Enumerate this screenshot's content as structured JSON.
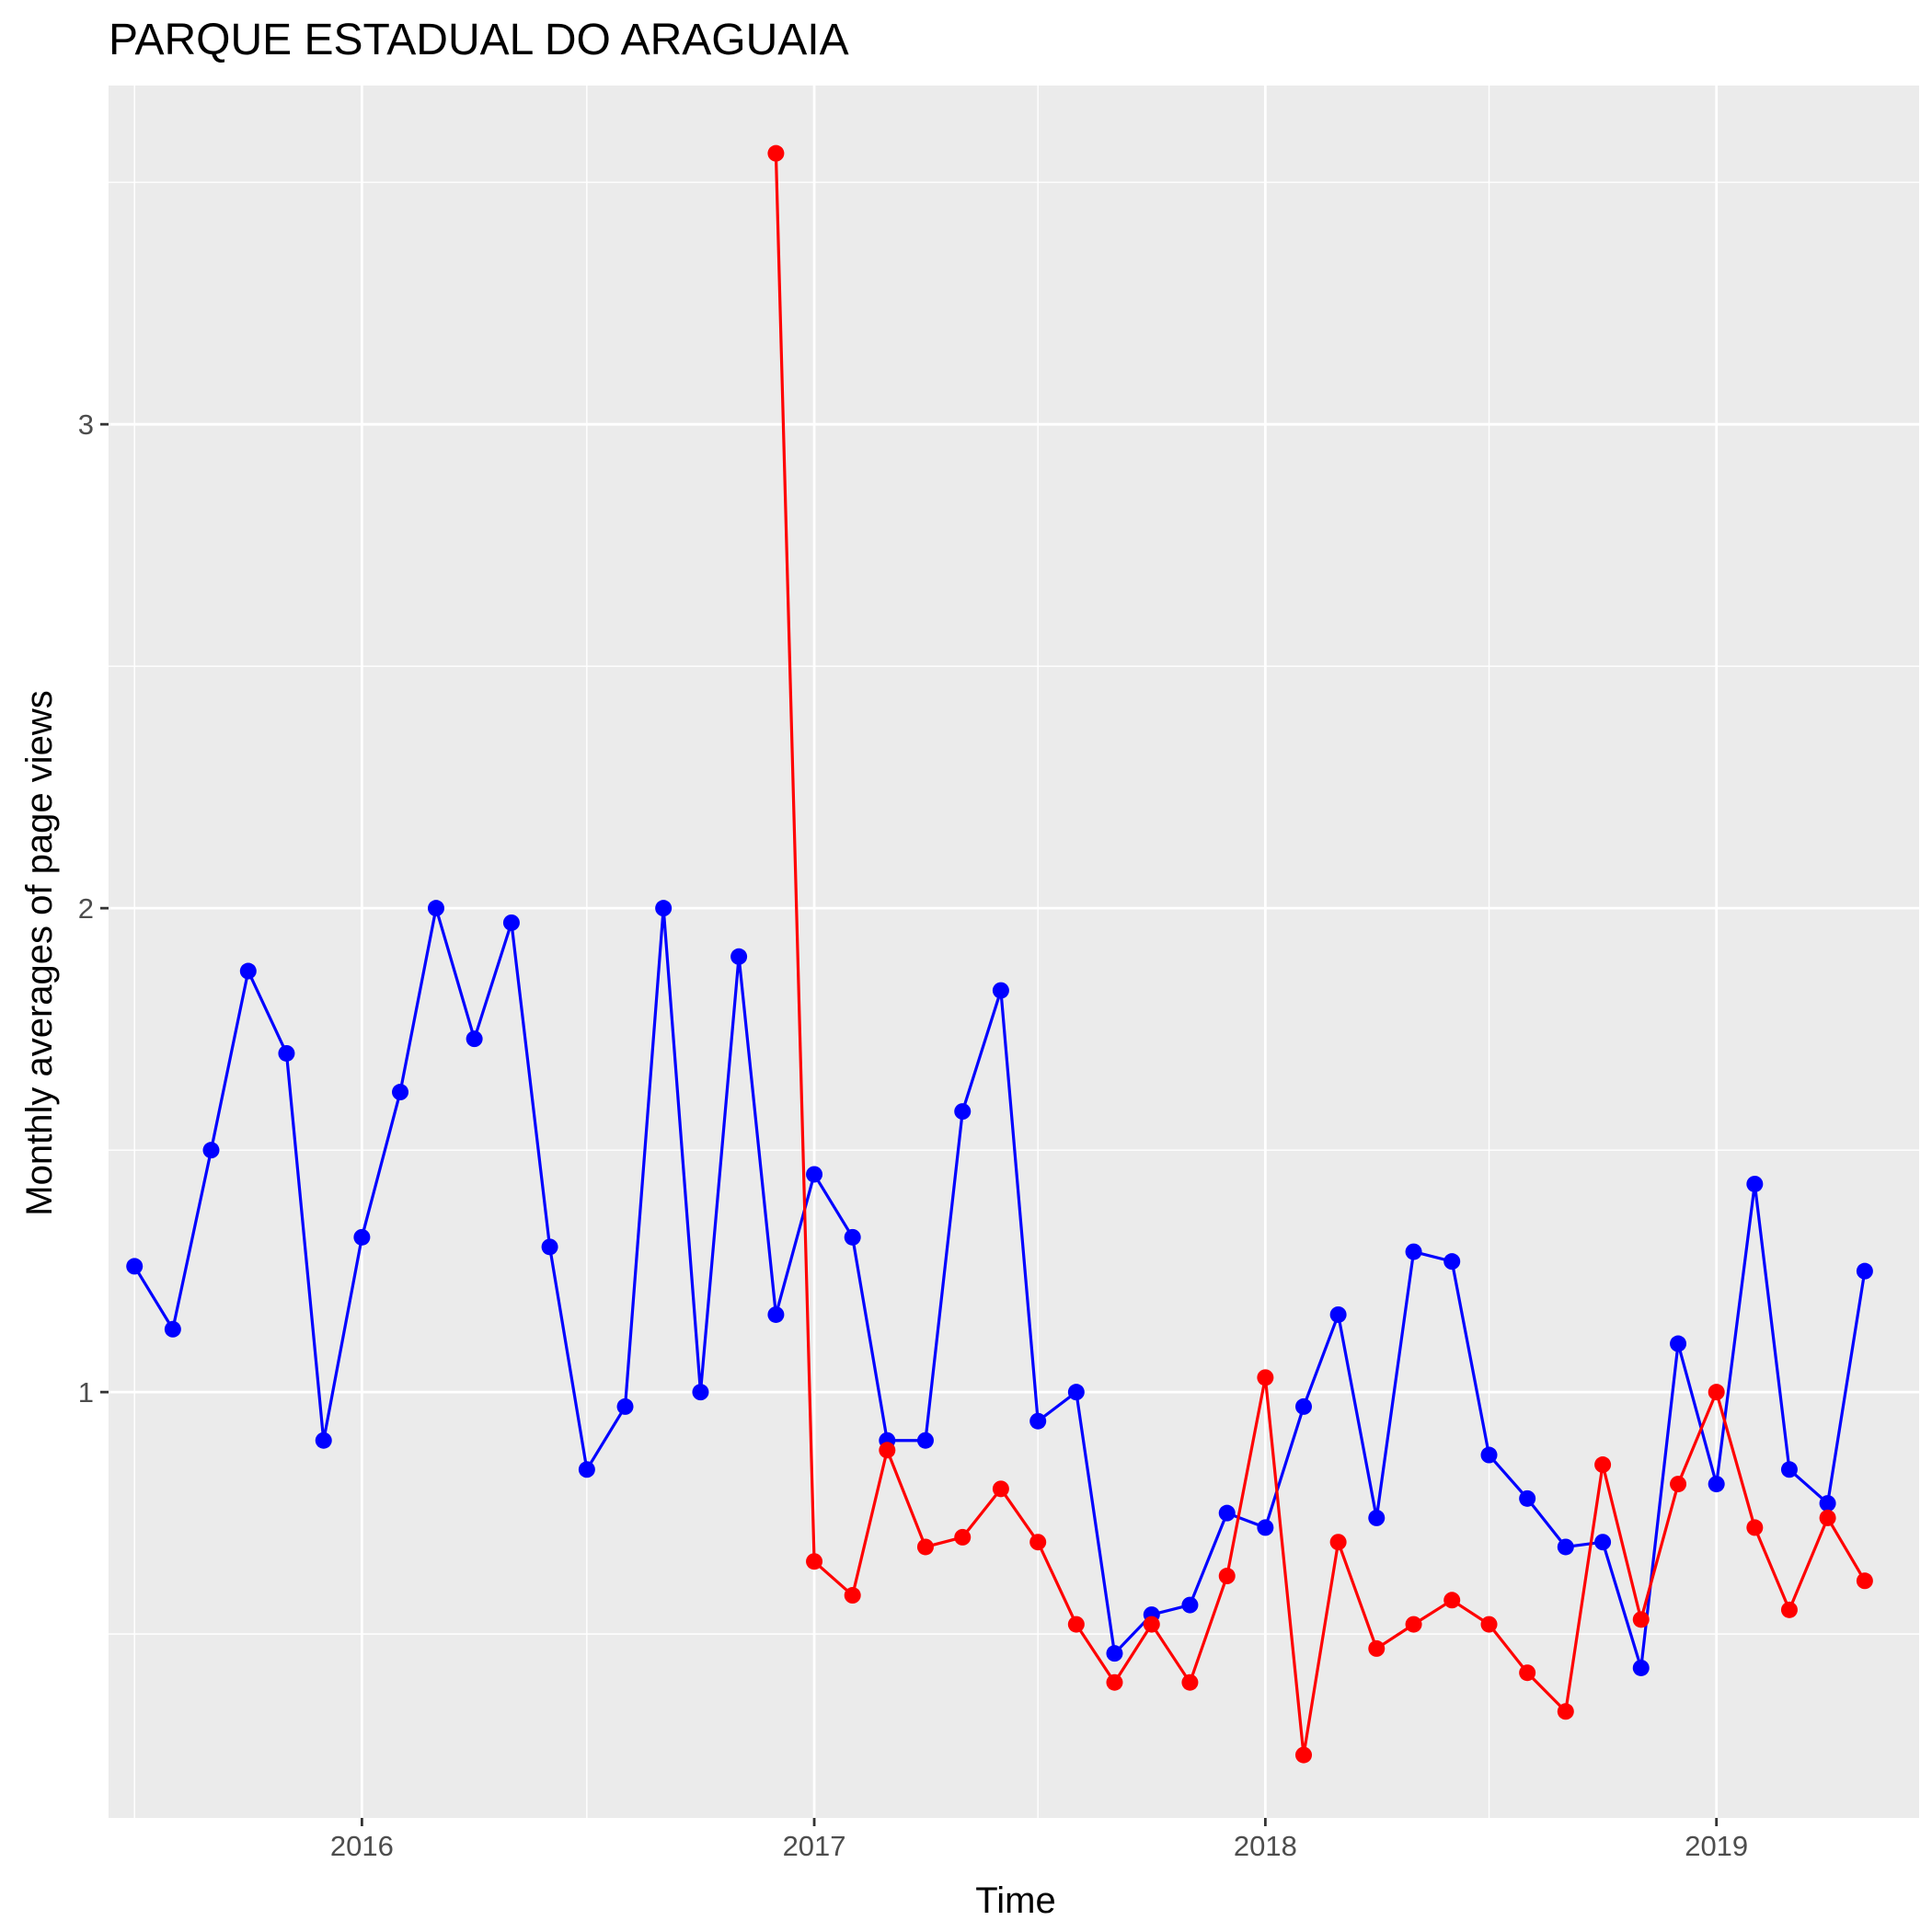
{
  "chart_data": {
    "type": "line",
    "title": "PARQUE ESTADUAL DO ARAGUAIA",
    "xlabel": "Time",
    "ylabel": "Monthly averages of page views",
    "x_ticks": [
      "2016",
      "2017",
      "2018",
      "2019"
    ],
    "y_ticks": [
      1,
      2,
      3
    ],
    "xlim": [
      "2015-06-10",
      "2019-06-14"
    ],
    "ylim": [
      0.12,
      3.7
    ],
    "grid": true,
    "legend": "none",
    "series": [
      {
        "color": "#0000ff",
        "points": [
          [
            "2015-07-01",
            1.26
          ],
          [
            "2015-08-01",
            1.13
          ],
          [
            "2015-09-01",
            1.5
          ],
          [
            "2015-10-01",
            1.87
          ],
          [
            "2015-11-01",
            1.7
          ],
          [
            "2015-12-01",
            0.9
          ],
          [
            "2016-01-01",
            1.32
          ],
          [
            "2016-02-01",
            1.62
          ],
          [
            "2016-03-01",
            2.0
          ],
          [
            "2016-04-01",
            1.73
          ],
          [
            "2016-05-01",
            1.97
          ],
          [
            "2016-06-01",
            1.3
          ],
          [
            "2016-07-01",
            0.84
          ],
          [
            "2016-08-01",
            0.97
          ],
          [
            "2016-09-01",
            2.0
          ],
          [
            "2016-10-01",
            1.0
          ],
          [
            "2016-11-01",
            1.9
          ],
          [
            "2016-12-01",
            1.16
          ],
          [
            "2017-01-01",
            1.45
          ],
          [
            "2017-02-01",
            1.32
          ],
          [
            "2017-03-01",
            0.9
          ],
          [
            "2017-04-01",
            0.9
          ],
          [
            "2017-05-01",
            1.58
          ],
          [
            "2017-06-01",
            1.83
          ],
          [
            "2017-07-01",
            0.94
          ],
          [
            "2017-08-01",
            1.0
          ],
          [
            "2017-09-01",
            0.46
          ],
          [
            "2017-10-01",
            0.54
          ],
          [
            "2017-11-01",
            0.56
          ],
          [
            "2017-12-01",
            0.75
          ],
          [
            "2018-01-01",
            0.72
          ],
          [
            "2018-02-01",
            0.97
          ],
          [
            "2018-03-01",
            1.16
          ],
          [
            "2018-04-01",
            0.74
          ],
          [
            "2018-05-01",
            1.29
          ],
          [
            "2018-06-01",
            1.27
          ],
          [
            "2018-07-01",
            0.87
          ],
          [
            "2018-08-01",
            0.78
          ],
          [
            "2018-09-01",
            0.68
          ],
          [
            "2018-10-01",
            0.69
          ],
          [
            "2018-11-01",
            0.43
          ],
          [
            "2018-12-01",
            1.1
          ],
          [
            "2019-01-01",
            0.81
          ],
          [
            "2019-02-01",
            1.43
          ],
          [
            "2019-03-01",
            0.84
          ],
          [
            "2019-04-01",
            0.77
          ],
          [
            "2019-05-01",
            1.25
          ]
        ]
      },
      {
        "color": "#ff0000",
        "points": [
          [
            "2016-12-01",
            3.56
          ],
          [
            "2017-01-01",
            0.65
          ],
          [
            "2017-02-01",
            0.58
          ],
          [
            "2017-03-01",
            0.88
          ],
          [
            "2017-04-01",
            0.68
          ],
          [
            "2017-05-01",
            0.7
          ],
          [
            "2017-06-01",
            0.8
          ],
          [
            "2017-07-01",
            0.69
          ],
          [
            "2017-08-01",
            0.52
          ],
          [
            "2017-09-01",
            0.4
          ],
          [
            "2017-10-01",
            0.52
          ],
          [
            "2017-11-01",
            0.4
          ],
          [
            "2017-12-01",
            0.62
          ],
          [
            "2018-01-01",
            1.03
          ],
          [
            "2018-02-01",
            0.25
          ],
          [
            "2018-03-01",
            0.69
          ],
          [
            "2018-04-01",
            0.47
          ],
          [
            "2018-05-01",
            0.52
          ],
          [
            "2018-06-01",
            0.57
          ],
          [
            "2018-07-01",
            0.52
          ],
          [
            "2018-08-01",
            0.42
          ],
          [
            "2018-09-01",
            0.34
          ],
          [
            "2018-10-01",
            0.85
          ],
          [
            "2018-11-01",
            0.53
          ],
          [
            "2018-12-01",
            0.81
          ],
          [
            "2019-01-01",
            1.0
          ],
          [
            "2019-02-01",
            0.72
          ],
          [
            "2019-03-01",
            0.55
          ],
          [
            "2019-04-01",
            0.74
          ],
          [
            "2019-05-01",
            0.61
          ]
        ]
      }
    ]
  }
}
